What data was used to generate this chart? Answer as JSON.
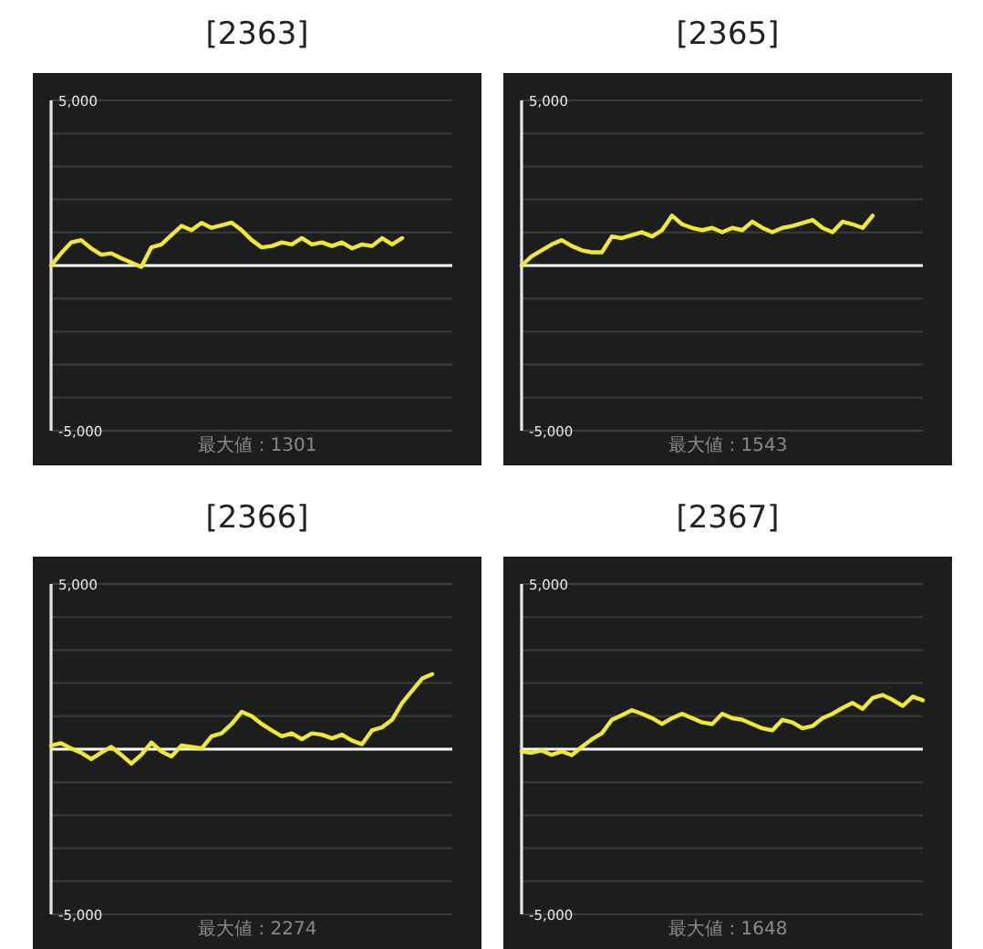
{
  "chart_data": [
    {
      "type": "line",
      "title": "[2363]",
      "categories": [
        null,
        null,
        null,
        null,
        null,
        null,
        null,
        null,
        null,
        null,
        null,
        null,
        null,
        null,
        null,
        null,
        null,
        null,
        null,
        null,
        null,
        null,
        null,
        null,
        null,
        null,
        null,
        null,
        null,
        null,
        null,
        null,
        null,
        null,
        null,
        null,
        null,
        null,
        null,
        null,
        null
      ],
      "values": [
        0,
        370,
        700,
        770,
        520,
        330,
        370,
        220,
        90,
        -40,
        550,
        640,
        920,
        1200,
        1070,
        1290,
        1140,
        1220,
        1300,
        1070,
        770,
        550,
        590,
        700,
        640,
        830,
        640,
        700,
        590,
        700,
        520,
        640,
        590,
        830,
        640,
        830,
        null,
        null,
        null,
        null,
        null
      ],
      "color": "#f0e832",
      "ylim": [
        -5000,
        5000
      ],
      "yticks": [
        {
          "value": 5000,
          "label": "5,000"
        },
        {
          "value": 4000,
          "label": null
        },
        {
          "value": 3000,
          "label": null
        },
        {
          "value": 2000,
          "label": null
        },
        {
          "value": 1000,
          "label": null
        },
        {
          "value": -1000,
          "label": null
        },
        {
          "value": -2000,
          "label": null
        },
        {
          "value": -3000,
          "label": null
        },
        {
          "value": -4000,
          "label": null
        },
        {
          "value": -5000,
          "label": "-5,000"
        }
      ],
      "grid": "y",
      "tick_labels": "y",
      "ref_lines": [
        {
          "axis": "y",
          "value": 0,
          "color": "#ffffff"
        }
      ],
      "annotations": [
        "最大値：1301"
      ]
    },
    {
      "type": "line",
      "title": "[2365]",
      "categories": [
        null,
        null,
        null,
        null,
        null,
        null,
        null,
        null,
        null,
        null,
        null,
        null,
        null,
        null,
        null,
        null,
        null,
        null,
        null,
        null,
        null,
        null,
        null,
        null,
        null,
        null,
        null,
        null,
        null,
        null,
        null,
        null,
        null,
        null,
        null,
        null,
        null,
        null,
        null,
        null,
        null
      ],
      "values": [
        0,
        280,
        460,
        640,
        770,
        590,
        460,
        400,
        400,
        880,
        830,
        920,
        1010,
        880,
        1070,
        1510,
        1250,
        1140,
        1070,
        1140,
        1010,
        1140,
        1070,
        1330,
        1140,
        1010,
        1140,
        1200,
        1290,
        1380,
        1140,
        1010,
        1330,
        1250,
        1140,
        1510,
        null,
        null,
        null,
        null,
        null
      ],
      "color": "#f0e832",
      "ylim": [
        -5000,
        5000
      ],
      "yticks": [
        {
          "value": 5000,
          "label": "5,000"
        },
        {
          "value": 4000,
          "label": null
        },
        {
          "value": 3000,
          "label": null
        },
        {
          "value": 2000,
          "label": null
        },
        {
          "value": 1000,
          "label": null
        },
        {
          "value": -1000,
          "label": null
        },
        {
          "value": -2000,
          "label": null
        },
        {
          "value": -3000,
          "label": null
        },
        {
          "value": -4000,
          "label": null
        },
        {
          "value": -5000,
          "label": "-5,000"
        }
      ],
      "grid": "y",
      "tick_labels": "y",
      "ref_lines": [
        {
          "axis": "y",
          "value": 0,
          "color": "#ffffff"
        }
      ],
      "annotations": [
        "最大値：1543"
      ]
    },
    {
      "type": "line",
      "title": "[2366]",
      "categories": [
        null,
        null,
        null,
        null,
        null,
        null,
        null,
        null,
        null,
        null,
        null,
        null,
        null,
        null,
        null,
        null,
        null,
        null,
        null,
        null,
        null,
        null,
        null,
        null,
        null,
        null,
        null,
        null,
        null,
        null,
        null,
        null,
        null,
        null,
        null,
        null,
        null,
        null,
        null,
        null,
        null
      ],
      "values": [
        110,
        180,
        20,
        -110,
        -300,
        -110,
        70,
        -170,
        -440,
        -170,
        200,
        -70,
        -220,
        110,
        70,
        20,
        390,
        480,
        760,
        1130,
        1000,
        760,
        570,
        390,
        480,
        300,
        480,
        440,
        330,
        440,
        260,
        150,
        570,
        660,
        890,
        1400,
        1770,
        2140,
        2270,
        null,
        null
      ],
      "color": "#f0e832",
      "ylim": [
        -5000,
        5000
      ],
      "yticks": [
        {
          "value": 5000,
          "label": "5,000"
        },
        {
          "value": 4000,
          "label": null
        },
        {
          "value": 3000,
          "label": null
        },
        {
          "value": 2000,
          "label": null
        },
        {
          "value": 1000,
          "label": null
        },
        {
          "value": -1000,
          "label": null
        },
        {
          "value": -2000,
          "label": null
        },
        {
          "value": -3000,
          "label": null
        },
        {
          "value": -4000,
          "label": null
        },
        {
          "value": -5000,
          "label": "-5,000"
        }
      ],
      "grid": "y",
      "tick_labels": "y",
      "ref_lines": [
        {
          "axis": "y",
          "value": 0,
          "color": "#ffffff"
        }
      ],
      "annotations": [
        "最大値：2274"
      ]
    },
    {
      "type": "line",
      "title": "[2367]",
      "categories": [
        null,
        null,
        null,
        null,
        null,
        null,
        null,
        null,
        null,
        null,
        null,
        null,
        null,
        null,
        null,
        null,
        null,
        null,
        null,
        null,
        null,
        null,
        null,
        null,
        null,
        null,
        null,
        null,
        null,
        null,
        null,
        null,
        null,
        null,
        null,
        null,
        null,
        null,
        null,
        null,
        null
      ],
      "values": [
        -70,
        -110,
        -40,
        -170,
        -70,
        -180,
        70,
        300,
        480,
        890,
        1030,
        1180,
        1070,
        940,
        760,
        940,
        1070,
        940,
        810,
        760,
        1070,
        940,
        890,
        760,
        630,
        570,
        890,
        810,
        630,
        700,
        940,
        1070,
        1250,
        1400,
        1220,
        1550,
        1640,
        1490,
        1310,
        1590,
        1480
      ],
      "color": "#f0e832",
      "ylim": [
        -5000,
        5000
      ],
      "yticks": [
        {
          "value": 5000,
          "label": "5,000"
        },
        {
          "value": 4000,
          "label": null
        },
        {
          "value": 3000,
          "label": null
        },
        {
          "value": 2000,
          "label": null
        },
        {
          "value": 1000,
          "label": null
        },
        {
          "value": -1000,
          "label": null
        },
        {
          "value": -2000,
          "label": null
        },
        {
          "value": -3000,
          "label": null
        },
        {
          "value": -4000,
          "label": null
        },
        {
          "value": -5000,
          "label": "-5,000"
        }
      ],
      "grid": "y",
      "tick_labels": "y",
      "ref_lines": [
        {
          "axis": "y",
          "value": 0,
          "color": "#ffffff"
        }
      ],
      "annotations": [
        "最大値：1648"
      ]
    }
  ]
}
